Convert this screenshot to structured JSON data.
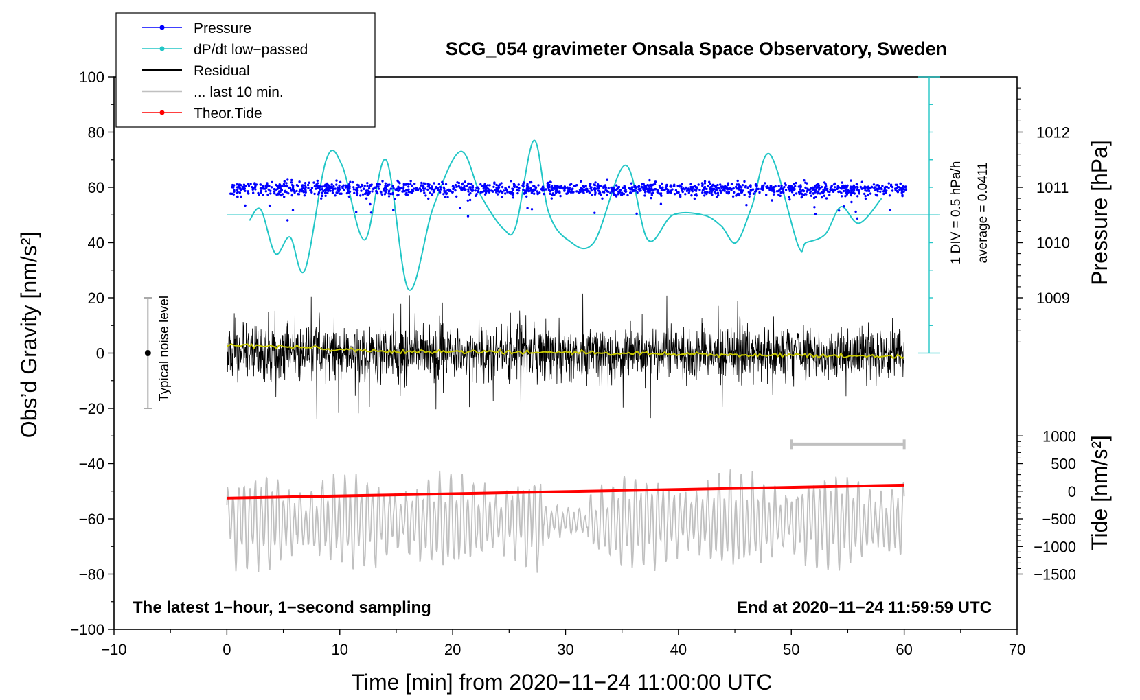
{
  "chart_data": {
    "type": "line",
    "title": "SCG_054 gravimeter Onsala Space Observatory, Sweden",
    "xlabel": "Time [min] from 2020−11−24 11:00:00 UTC",
    "ylabel_left": "Obs’d Gravity [nm/s²]",
    "ylabel_right_upper": "Pressure [hPa]",
    "ylabel_right_lower": "Tide [nm/s²]",
    "xlim": [
      -10,
      70
    ],
    "ylim": [
      -100,
      100
    ],
    "pressure_ylim": [
      1008,
      1013
    ],
    "tide_ylim": [
      -1500,
      1500
    ],
    "x_ticks": [
      "−10",
      "0",
      "10",
      "20",
      "30",
      "40",
      "50",
      "60",
      "70"
    ],
    "y_ticks": [
      "−100",
      "−80",
      "−60",
      "−40",
      "−20",
      "0",
      "20",
      "40",
      "60",
      "80",
      "100"
    ],
    "pressure_ticks": [
      "1009",
      "1010",
      "1011",
      "1012"
    ],
    "tide_ticks": [
      "−1500",
      "−1000",
      "−500",
      "0",
      "500",
      "1000"
    ],
    "legend": {
      "position": "top-left",
      "entries": [
        "Pressure",
        "dP/dt low−passed",
        "Residual",
        "... last 10 min.",
        "Theor.Tide"
      ]
    },
    "annotations": {
      "left_bottom": "The latest 1−hour, 1−second sampling",
      "right_bottom": "End at 2020−11−24 11:59:59 UTC",
      "noise_label": "Typical noise level",
      "div_label": "1 DIV = 0.5 hPa/h",
      "avg_label": "average = 0.0411"
    },
    "noise_level": {
      "x": -7,
      "center": 0,
      "range": [
        -20,
        20
      ]
    },
    "pressure_mean_hPa": 1010.97,
    "pressure_scatter_hPa": 0.25,
    "dpdt_baseline_y": 50,
    "dpdt_series": {
      "x": [
        2,
        3,
        4.3,
        5.6,
        6.9,
        8.8,
        10.2,
        12.2,
        14.1,
        16.1,
        18.3,
        20.7,
        22.5,
        24.5,
        25.6,
        27.2,
        28.5,
        30.2,
        32.5,
        35.3,
        37.3,
        39.5,
        42.2,
        43.8,
        45.1,
        46.5,
        48.1,
        50.6,
        51.3,
        53,
        54.4,
        56,
        58
      ],
      "y": [
        48,
        52,
        36,
        42,
        30,
        70,
        68,
        41,
        70,
        23,
        53,
        73,
        57,
        45,
        46,
        77,
        51,
        41,
        40,
        68,
        41,
        50,
        50,
        46,
        40,
        53,
        72,
        39,
        40,
        43,
        53,
        47,
        56
      ]
    },
    "residual_series": {
      "x_range": [
        0,
        60
      ],
      "amplitude_max": 30,
      "min": -30,
      "max": 32
    },
    "residual_smoothed": {
      "x": [
        0,
        15,
        30,
        45,
        60
      ],
      "y": [
        3,
        0.6,
        0.3,
        -0.6,
        -1.2
      ]
    },
    "last10_series": {
      "x_range": [
        0,
        60
      ],
      "baseline": -61,
      "min": -83,
      "max": -40
    },
    "last10_bar": {
      "x": [
        50,
        60
      ],
      "y": -33
    },
    "theor_tide": {
      "x": [
        0,
        60
      ],
      "y": [
        -52.5,
        -47.8
      ]
    }
  },
  "colors": {
    "pressure": "#0000ff",
    "dpdt": "#22c6c6",
    "residual": "#000000",
    "last10": "#c0c0c0",
    "tide": "#ff0000",
    "smooth": "#c8c800"
  }
}
